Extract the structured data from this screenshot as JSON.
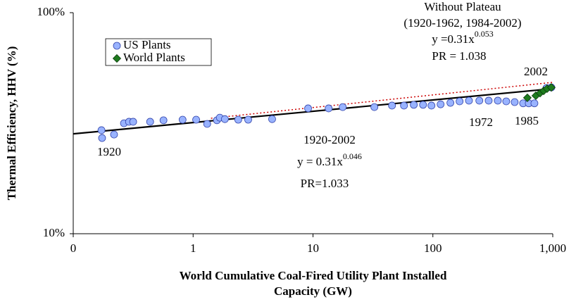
{
  "chart_data": {
    "type": "scatter",
    "xlabel": [
      "World Cumulative Coal-Fired Utility Plant Installed",
      "Capacity (GW)"
    ],
    "ylabel": "Thermal Efficiency, HHV (%)",
    "xscale": "log",
    "yscale": "log",
    "xlim": [
      0.1,
      1000
    ],
    "ylim": [
      10,
      100
    ],
    "xticks": [
      {
        "value": 0.1,
        "label": "0"
      },
      1,
      10,
      100,
      {
        "value": 1000,
        "label": "1,000"
      }
    ],
    "yticks": [
      {
        "value": 10,
        "label": "10%"
      },
      {
        "value": 100,
        "label": "100%"
      }
    ],
    "grid": false,
    "legend": "upper left",
    "series": [
      {
        "name": "US Plants",
        "color": "#99b3ff",
        "marker": "circle",
        "x": [
          0.172,
          0.174,
          0.219,
          0.265,
          0.292,
          0.316,
          0.438,
          0.566,
          0.817,
          1.06,
          1.31,
          1.58,
          1.67,
          1.84,
          2.38,
          2.88,
          4.56,
          9.1,
          13.5,
          17.7,
          32.5,
          45.6,
          57.4,
          69.3,
          82.8,
          97.3,
          116,
          140,
          167,
          200,
          244,
          292,
          348,
          409,
          481,
          566,
          631,
          703,
          886,
          973
        ],
        "y": [
          29.4,
          27.1,
          28.1,
          31.6,
          32.1,
          32.1,
          32.1,
          32.6,
          32.8,
          32.8,
          31.4,
          32.6,
          33.5,
          33.0,
          32.8,
          32.8,
          33.0,
          36.9,
          36.9,
          37.4,
          37.4,
          38.0,
          38.0,
          38.3,
          38.3,
          38.0,
          38.5,
          39.1,
          39.7,
          40.0,
          40.0,
          40.0,
          40.0,
          39.7,
          39.4,
          38.9,
          38.9,
          38.9,
          45.6,
          45.9
        ]
      },
      {
        "name": "World Plants",
        "color": "#1e7b1e",
        "marker": "diamond",
        "x": [
          614,
          722,
          784,
          839,
          897,
          973
        ],
        "y": [
          41.2,
          42.1,
          43.3,
          44.3,
          45.3,
          45.9
        ]
      }
    ],
    "trend_lines": [
      {
        "style": "solid",
        "color": "#000000",
        "x": [
          0.1,
          1000
        ],
        "y": [
          28.3,
          45.3
        ]
      },
      {
        "style": "dotted",
        "color": "#cc0000",
        "x": [
          1.41,
          1000
        ],
        "y": [
          33.3,
          48.4
        ]
      }
    ],
    "annotations": [
      {
        "text": "Without Plateau"
      },
      {
        "text": "(1920-1962, 1984-2002)"
      },
      {
        "text": "y =0.31x",
        "sup": "0.053"
      },
      {
        "text": "PR = 1.038"
      },
      {
        "text": "2002"
      },
      {
        "text": "1972"
      },
      {
        "text": "1985"
      },
      {
        "text": "1920"
      },
      {
        "text": "1920-2002"
      },
      {
        "text": "y = 0.31x",
        "sup": "0.046"
      },
      {
        "text": "PR=1.033"
      }
    ]
  }
}
